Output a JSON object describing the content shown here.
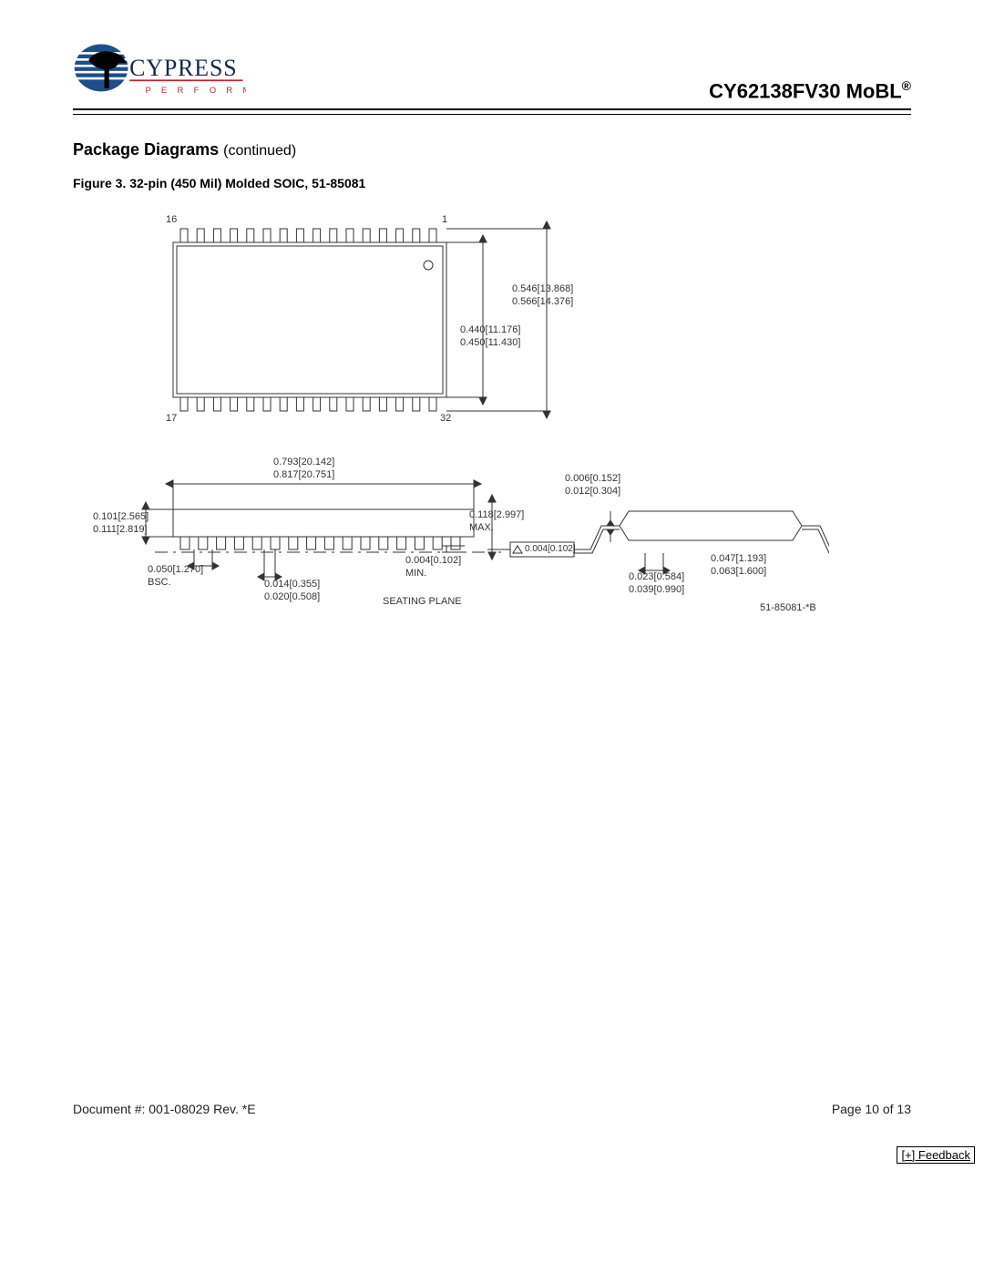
{
  "header": {
    "logo_name": "CYPRESS",
    "logo_tagline": "P E R F O R M",
    "part_number": "CY62138FV30 MoBL",
    "trademark": "®"
  },
  "section": {
    "title": "Package Diagrams",
    "continued": "(continued)"
  },
  "figure": {
    "title": "Figure 3. 32-pin (450 Mil) Molded SOIC, 51-85081",
    "revision_code": "51-85081-*B"
  },
  "top_view": {
    "pin_count_side": 16,
    "pin_labels": {
      "top_left": "16",
      "top_right": "1",
      "bottom_left": "17",
      "bottom_right": "32"
    },
    "dim_outer": {
      "min": "0.546[13.868]",
      "max": "0.566[14.376]"
    },
    "dim_body": {
      "min": "0.440[11.176]",
      "max": "0.450[11.430]"
    }
  },
  "side_view": {
    "length": {
      "min": "0.793[20.142]",
      "max": "0.817[20.751]"
    },
    "height": {
      "min": "0.101[2.565]",
      "max": "0.111[2.819]"
    },
    "overall_h": {
      "val": "0.118[2.997]",
      "note": "MAX."
    },
    "lead_width": {
      "min": "0.014[0.355]",
      "max": "0.020[0.508]"
    },
    "pitch": {
      "val": "0.050[1.270]",
      "note": "BSC."
    },
    "standoff": {
      "val": "0.004[0.102]",
      "note": "MIN."
    },
    "coplanarity": {
      "val": "0.004[0.102]"
    },
    "seating_plane_label": "SEATING PLANE"
  },
  "end_view": {
    "lead_thick": {
      "min": "0.006[0.152]",
      "max": "0.012[0.304]"
    },
    "foot_len": {
      "min": "0.023[0.584]",
      "max": "0.039[0.990]"
    },
    "foot_width": {
      "min": "0.047[1.193]",
      "max": "0.063[1.600]"
    }
  },
  "footer": {
    "doc": "Document #: 001-08029 Rev. *E",
    "page": "Page 10 of 13",
    "feedback": "[+] Feedback"
  },
  "colors": {
    "logo_blue": "#1d4e89",
    "logo_red": "#c1272d",
    "line": "#333333"
  }
}
